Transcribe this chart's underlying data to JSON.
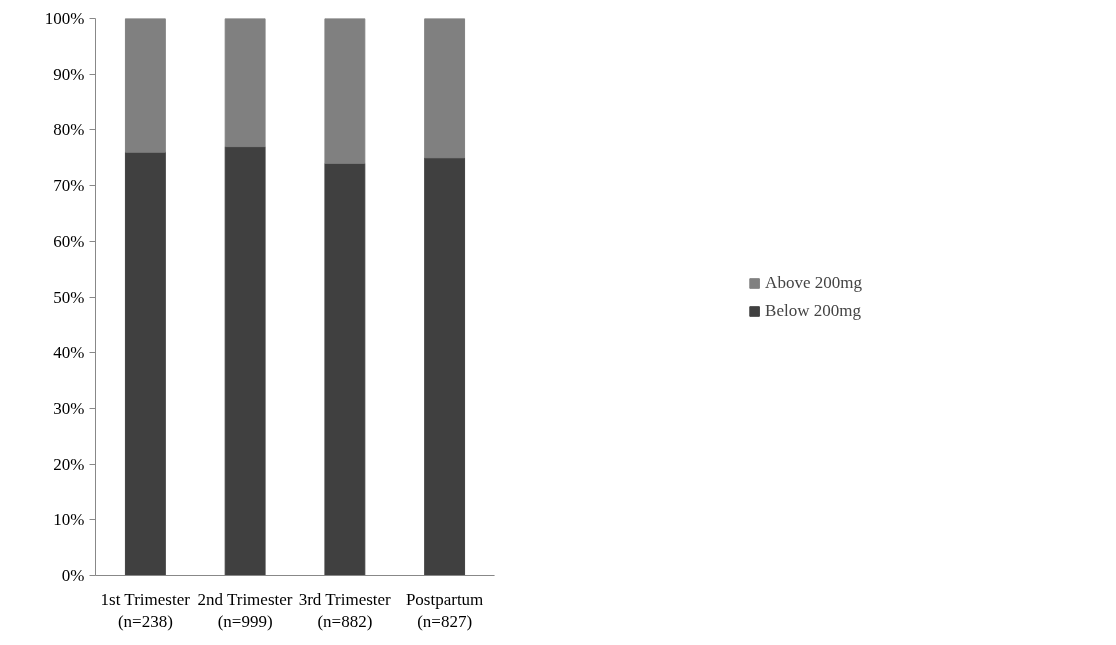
{
  "chart_data": {
    "type": "bar",
    "stacked": true,
    "categories": [
      "1st Trimester\n(n=238)",
      "2nd Trimester\n(n=999)",
      "3rd Trimester\n(n=882)",
      "Postpartum\n(n=827)"
    ],
    "series": [
      {
        "name": "Below 200mg",
        "color": "#404040",
        "values": [
          76,
          77,
          74,
          75
        ]
      },
      {
        "name": "Above 200mg",
        "color": "#808080",
        "values": [
          24,
          23,
          26,
          25
        ]
      }
    ],
    "ylim": [
      0,
      100
    ],
    "yticks": [
      {
        "value": 0,
        "label": "0%"
      },
      {
        "value": 10,
        "label": "10%"
      },
      {
        "value": 20,
        "label": "20%"
      },
      {
        "value": 30,
        "label": "30%"
      },
      {
        "value": 40,
        "label": "40%"
      },
      {
        "value": 50,
        "label": "50%"
      },
      {
        "value": 60,
        "label": "60%"
      },
      {
        "value": 70,
        "label": "70%"
      },
      {
        "value": 80,
        "label": "80%"
      },
      {
        "value": 90,
        "label": "90%"
      },
      {
        "value": 100,
        "label": "100%"
      }
    ],
    "grid": false,
    "legend": "right"
  }
}
